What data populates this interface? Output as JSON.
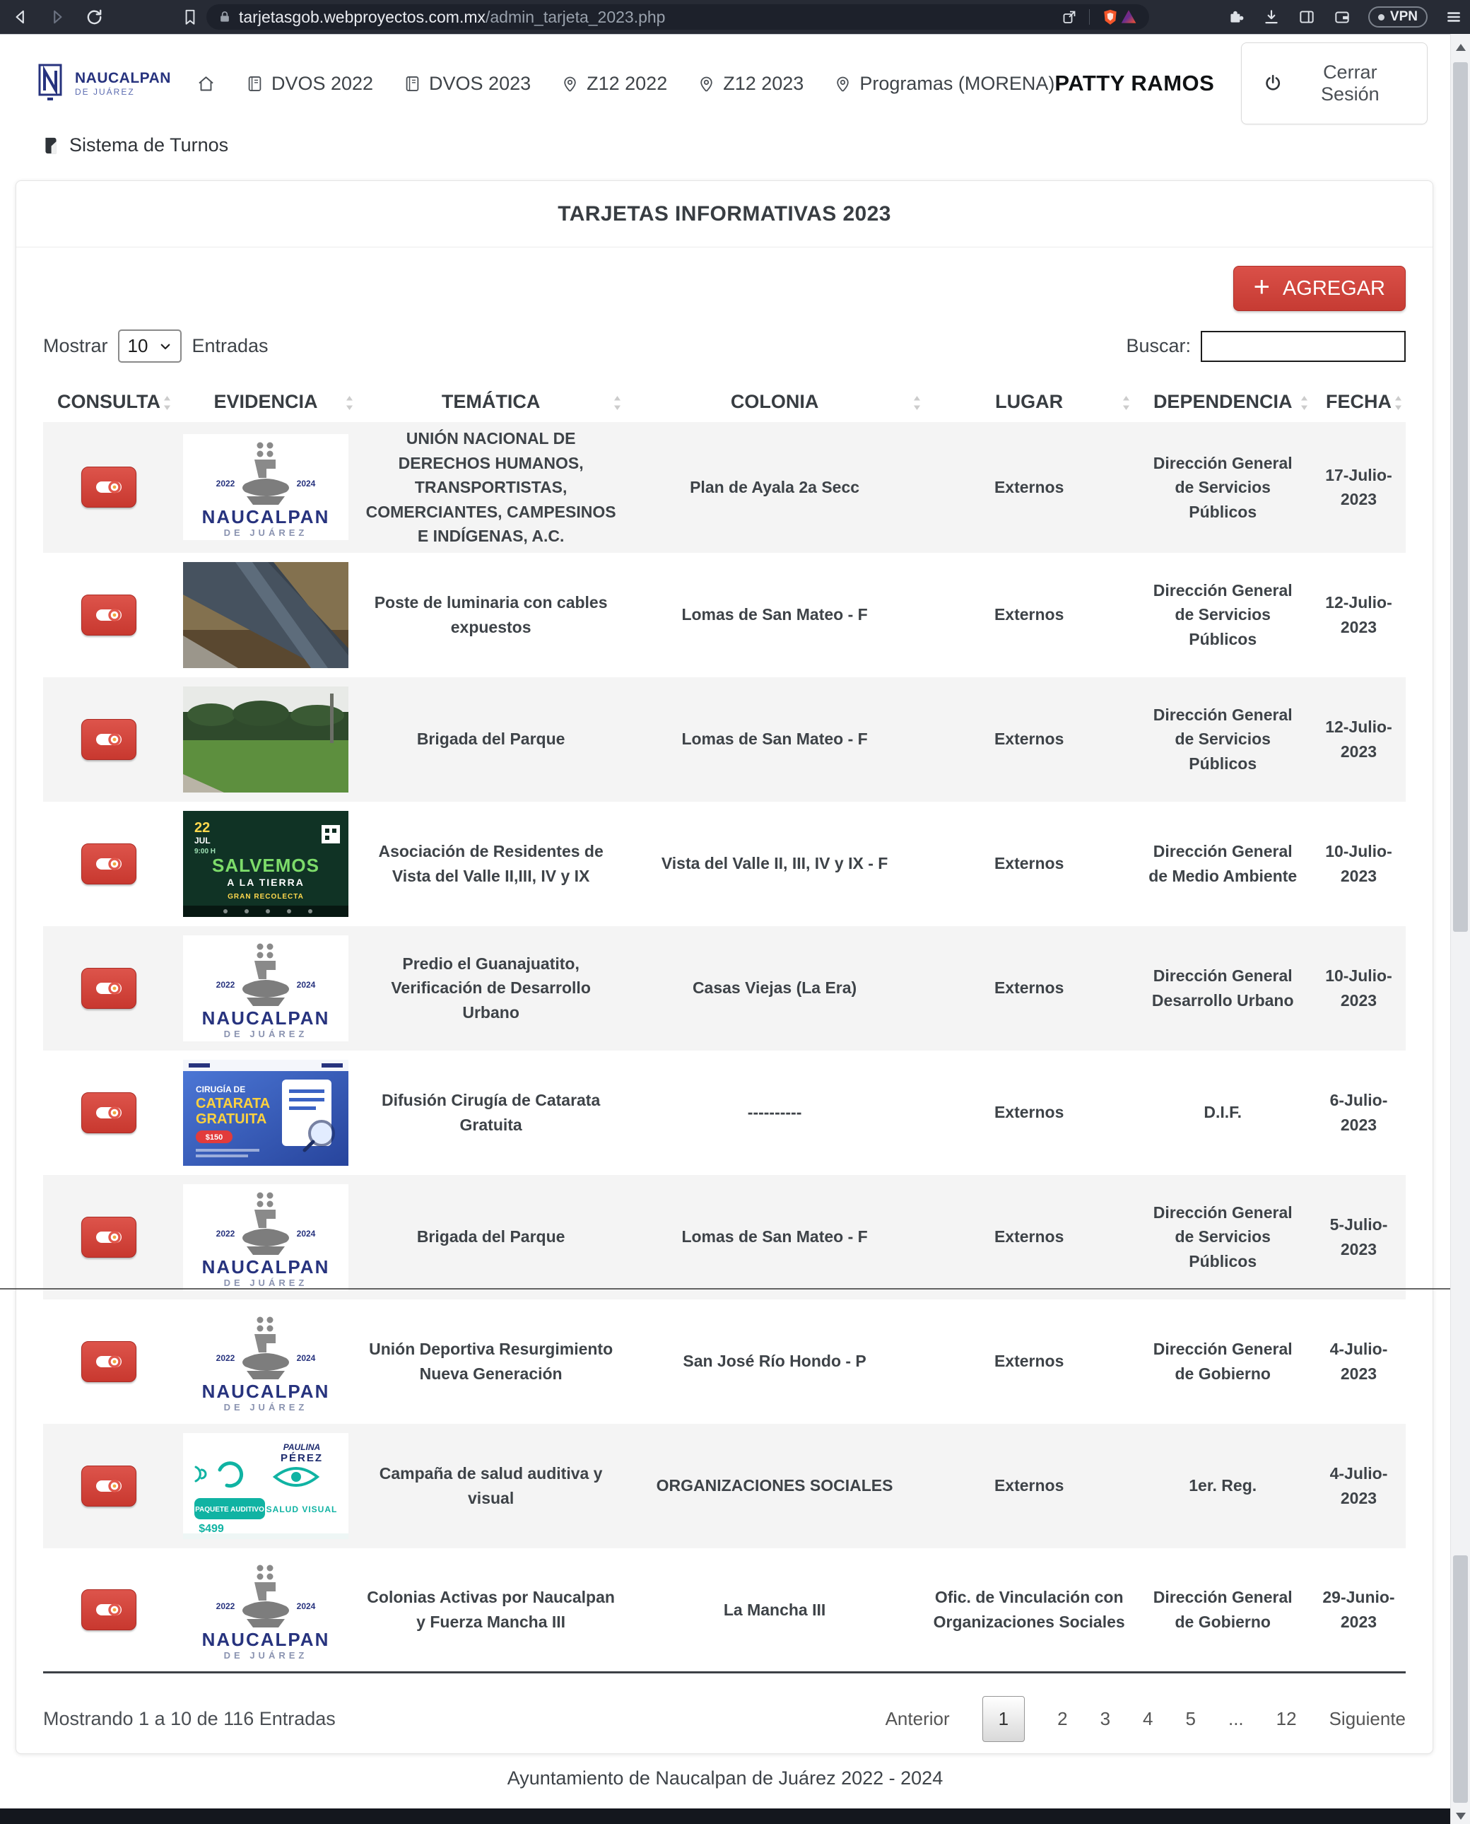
{
  "browser": {
    "url_host": "tarjetasgob.webproyectos.com.mx",
    "url_path": "/admin_tarjeta_2023.php",
    "vpn_label": "VPN"
  },
  "nav": {
    "brand": {
      "title": "NAUCALPAN",
      "subtitle": "DE JUÁREZ"
    },
    "items": [
      {
        "icon": "home",
        "label": ""
      },
      {
        "icon": "journal",
        "label": "DVOS 2022"
      },
      {
        "icon": "journal",
        "label": "DVOS 2023"
      },
      {
        "icon": "pin",
        "label": "Z12 2022"
      },
      {
        "icon": "pin",
        "label": "Z12 2023"
      },
      {
        "icon": "pin",
        "label": "Programas (MORENA)"
      }
    ],
    "user_name": "PATTY RAMOS",
    "logout_label": "Cerrar Sesión"
  },
  "subnav": {
    "label": "Sistema de Turnos"
  },
  "card": {
    "title": "TARJETAS INFORMATIVAS 2023",
    "add_button": "AGREGAR",
    "show_label": "Mostrar",
    "show_value": "10",
    "entries_label": "Entradas",
    "search_label": "Buscar:",
    "columns": [
      "CONSULTA",
      "EVIDENCIA",
      "TEMÁTICA",
      "COLONIA",
      "LUGAR",
      "DEPENDENCIA",
      "FECHA"
    ],
    "rows": [
      {
        "tematica": "UNIÓN NACIONAL DE DERECHOS HUMANOS, TRANSPORTISTAS, COMERCIANTES, CAMPESINOS E INDÍGENAS, A.C.",
        "colonia": "Plan de Ayala 2a Secc",
        "lugar": "Externos",
        "dependencia": "Dirección General de Servicios Públicos",
        "fecha": "17-Julio-2023",
        "evidence": {
          "type": "naucalpan-logo",
          "year_left": "2022",
          "year_right": "2024",
          "title": "NAUCALPAN",
          "subtitle": "DE JUÁREZ"
        }
      },
      {
        "tematica": "Poste de luminaria con cables expuestos",
        "colonia": "Lomas de San Mateo - F",
        "lugar": "Externos",
        "dependencia": "Dirección General de Servicios Públicos",
        "fecha": "12-Julio-2023",
        "evidence": {
          "type": "photo-pole"
        }
      },
      {
        "tematica": "Brigada del Parque",
        "colonia": "Lomas de San Mateo - F",
        "lugar": "Externos",
        "dependencia": "Dirección General de Servicios Públicos",
        "fecha": "12-Julio-2023",
        "evidence": {
          "type": "photo-park"
        }
      },
      {
        "tematica": "Asociación de Residentes de Vista del Valle II,III, IV y IX",
        "colonia": "Vista del Valle II, III, IV y IX - F",
        "lugar": "Externos",
        "dependencia": "Dirección General de Medio Ambiente",
        "fecha": "10-Julio-2023",
        "evidence": {
          "type": "poster-salvemos",
          "caption_date": "22 JUL",
          "caption_time": "9:00 H",
          "title1": "SALVEMOS",
          "title2": "A LA TIERRA",
          "title3": "GRAN RECOLECTA"
        }
      },
      {
        "tematica": "Predio el Guanajuatito, Verificación de Desarrollo Urbano",
        "colonia": "Casas Viejas (La Era)",
        "lugar": "Externos",
        "dependencia": "Dirección General Desarrollo Urbano",
        "fecha": "10-Julio-2023",
        "evidence": {
          "type": "naucalpan-logo",
          "year_left": "2022",
          "year_right": "2024",
          "title": "NAUCALPAN",
          "subtitle": "DE JUÁREZ"
        }
      },
      {
        "tematica": "Difusión Cirugía de Catarata Gratuita",
        "colonia": "----------",
        "lugar": "Externos",
        "dependencia": "D.I.F.",
        "fecha": "6-Julio-2023",
        "evidence": {
          "type": "poster-catarata",
          "title1": "CIRUGÍA DE",
          "title2": "CATARATA",
          "title3": "GRATUITA",
          "badge": "$150"
        }
      },
      {
        "tematica": "Brigada del Parque",
        "colonia": "Lomas de San Mateo - F",
        "lugar": "Externos",
        "dependencia": "Dirección General de Servicios Públicos",
        "fecha": "5-Julio-2023",
        "evidence": {
          "type": "naucalpan-logo",
          "year_left": "2022",
          "year_right": "2024",
          "title": "NAUCALPAN",
          "subtitle": "DE JUÁREZ"
        }
      },
      {
        "tematica": "Unión Deportiva Resurgimiento Nueva Generación",
        "colonia": "San José Río Hondo - P",
        "lugar": "Externos",
        "dependencia": "Dirección General de Gobierno",
        "fecha": "4-Julio-2023",
        "evidence": {
          "type": "naucalpan-logo",
          "year_left": "2022",
          "year_right": "2024",
          "title": "NAUCALPAN",
          "subtitle": "DE JUÁREZ"
        }
      },
      {
        "tematica": "Campaña de salud auditiva y visual",
        "colonia": "ORGANIZACIONES SOCIALES",
        "lugar": "Externos",
        "dependencia": "1er. Reg.",
        "fecha": "4-Julio-2023",
        "evidence": {
          "type": "poster-salud",
          "name1": "PAULINA",
          "name2": "PÉREZ",
          "badge1": "PAQUETE AUDITIVO",
          "price": "$499",
          "badge2": "SALUD VISUAL"
        }
      },
      {
        "tematica": "Colonias Activas por Naucalpan y Fuerza Mancha III",
        "colonia": "La Mancha III",
        "lugar": "Ofic. de Vinculación con Organizaciones Sociales",
        "dependencia": "Dirección General de Gobierno",
        "fecha": "29-Junio-2023",
        "evidence": {
          "type": "naucalpan-logo",
          "year_left": "2022",
          "year_right": "2024",
          "title": "NAUCALPAN",
          "subtitle": "DE JUÁREZ"
        }
      }
    ],
    "footer_status": "Mostrando 1 a 10 de 116 Entradas",
    "pagination": {
      "prev": "Anterior",
      "pages": [
        "1",
        "2",
        "3",
        "4",
        "5",
        "...",
        "12"
      ],
      "active": "1",
      "next": "Siguiente"
    }
  },
  "page_footer": "Ayuntamiento de Naucalpan de Juárez 2022 - 2024",
  "colors": {
    "accent_red": "#d0413a",
    "brand_navy": "#27337e",
    "teal": "#10b3a3",
    "row_stripe": "#f4f4f4",
    "chrome_bg": "#272b35"
  }
}
